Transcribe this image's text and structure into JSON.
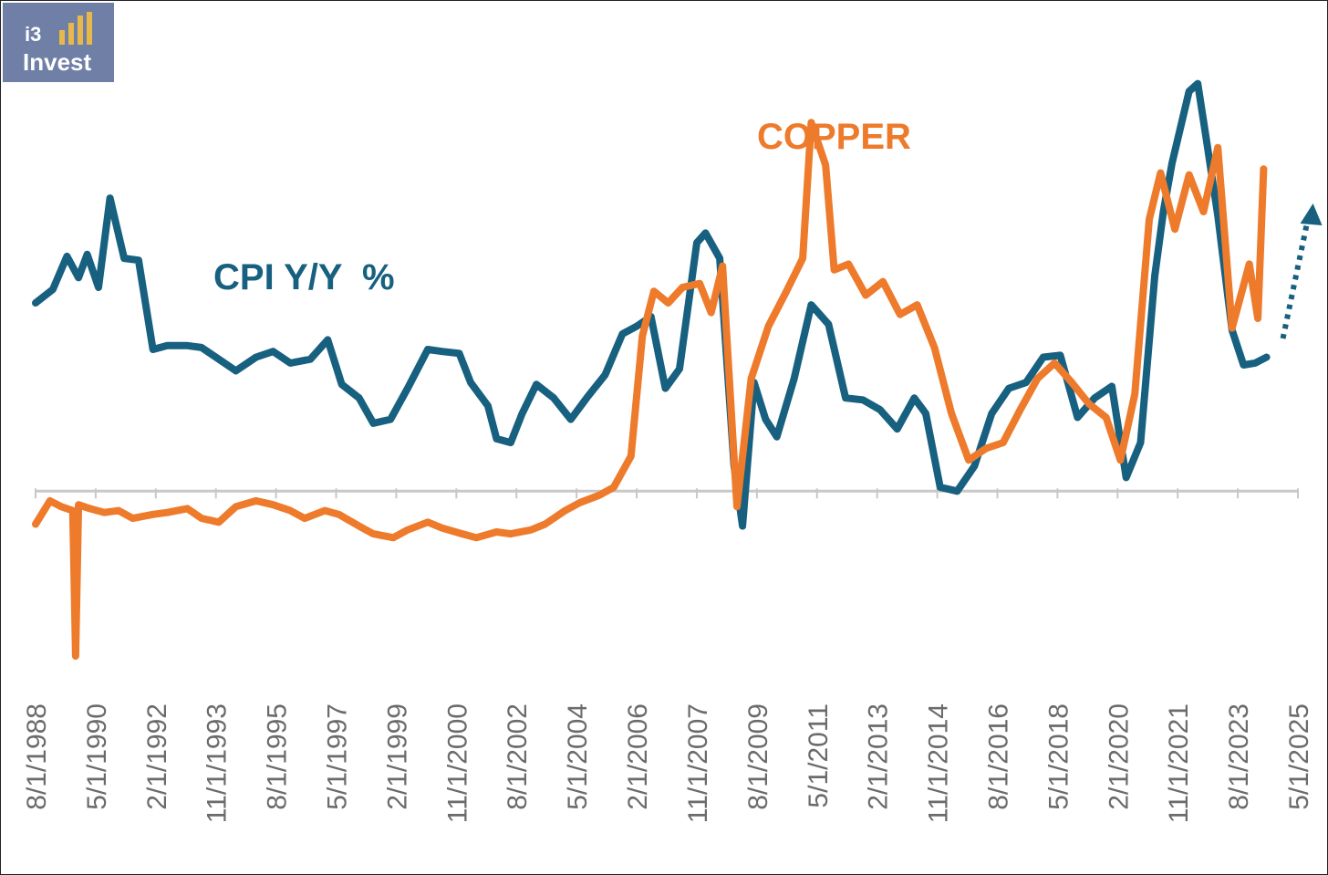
{
  "logo": {
    "line1": "i3",
    "line2": "Invest"
  },
  "colors": {
    "cpi": "#17607f",
    "copper": "#ee7a2b",
    "axis": "#c8c8c8",
    "logo_bg": "#6f7fa6",
    "logo_bars": "#e8b84a"
  },
  "chart_data": {
    "type": "line",
    "title": "",
    "xlabel": "",
    "ylabel": "",
    "grid": false,
    "y_axis_shown": false,
    "annotation": "dotted arrow pointing up-right after last CPI point",
    "x_tick_labels": [
      "8/1/1988",
      "5/1/1990",
      "2/1/1992",
      "11/1/1993",
      "8/1/1995",
      "5/1/1997",
      "2/1/1999",
      "11/1/2000",
      "8/1/2002",
      "5/1/2004",
      "2/1/2006",
      "11/1/2007",
      "8/1/2009",
      "5/1/2011",
      "2/1/2013",
      "11/1/2014",
      "8/1/2016",
      "5/1/2018",
      "2/1/2020",
      "11/1/2021",
      "8/1/2023",
      "5/1/2025"
    ],
    "xlim": [
      "1988-08-01",
      "2025-05-01"
    ],
    "ylim": [
      -100,
      215
    ],
    "series": [
      {
        "name": "CPI Y/Y  %",
        "dates": [
          "1988-08-01",
          "1989-02-01",
          "1989-07-01",
          "1989-11-01",
          "1990-02-01",
          "1990-06-01",
          "1990-10-01",
          "1991-03-01",
          "1991-08-01",
          "1992-01-01",
          "1992-06-01",
          "1993-01-01",
          "1993-06-01",
          "1993-12-01",
          "1994-06-01",
          "1995-01-01",
          "1995-07-01",
          "1996-01-01",
          "1996-08-01",
          "1997-02-01",
          "1997-07-01",
          "1998-01-01",
          "1998-06-01",
          "1998-12-01",
          "1999-06-01",
          "2000-01-01",
          "2000-06-01",
          "2000-12-01",
          "2001-04-01",
          "2001-10-01",
          "2002-01-01",
          "2002-06-01",
          "2002-10-01",
          "2003-03-01",
          "2003-09-01",
          "2004-03-01",
          "2004-09-01",
          "2005-03-01",
          "2005-09-01",
          "2006-02-01",
          "2006-07-01",
          "2006-12-01",
          "2007-05-01",
          "2007-11-01",
          "2008-02-01",
          "2008-07-01",
          "2008-12-01",
          "2009-03-01",
          "2009-07-01",
          "2009-11-01",
          "2010-03-01",
          "2010-09-01",
          "2011-03-01",
          "2011-09-01",
          "2012-03-01",
          "2012-09-01",
          "2013-03-01",
          "2013-09-01",
          "2014-03-01",
          "2014-07-01",
          "2014-12-01",
          "2015-06-01",
          "2015-12-01",
          "2016-06-01",
          "2016-12-01",
          "2017-06-01",
          "2017-12-01",
          "2018-06-01",
          "2018-12-01",
          "2019-06-01",
          "2019-12-01",
          "2020-05-01",
          "2020-10-01",
          "2021-03-01",
          "2021-06-01",
          "2021-09-01",
          "2022-03-01",
          "2022-06-01",
          "2022-09-01",
          "2023-01-01",
          "2023-06-01",
          "2023-10-01",
          "2024-02-01",
          "2024-06-01"
        ],
        "values": [
          97,
          104,
          121,
          110,
          122,
          105,
          151,
          120,
          119,
          73,
          75,
          75,
          74,
          68,
          62,
          69,
          72,
          66,
          68,
          78,
          55,
          48,
          35,
          37,
          53,
          73,
          72,
          71,
          56,
          44,
          27,
          25,
          40,
          55,
          48,
          37,
          49,
          60,
          81,
          85,
          90,
          53,
          63,
          128,
          133,
          120,
          13,
          -18,
          56,
          37,
          28,
          58,
          96,
          86,
          48,
          47,
          42,
          32,
          48,
          40,
          2,
          0,
          13,
          40,
          53,
          56,
          69,
          70,
          38,
          48,
          54,
          7,
          25,
          111,
          144,
          169,
          206,
          210,
          181,
          142,
          83,
          65,
          66,
          69
        ]
      },
      {
        "name": "COPPER",
        "dates": [
          "1988-08-01",
          "1989-01-01",
          "1989-05-01",
          "1989-09-01",
          "1989-10-01",
          "1989-11-01",
          "1990-03-01",
          "1990-08-01",
          "1991-01-01",
          "1991-06-01",
          "1992-01-01",
          "1992-06-01",
          "1993-01-01",
          "1993-06-01",
          "1993-12-01",
          "1994-06-01",
          "1995-01-01",
          "1995-07-01",
          "1996-01-01",
          "1996-06-01",
          "1997-01-01",
          "1997-06-01",
          "1998-01-01",
          "1998-06-01",
          "1999-01-01",
          "1999-06-01",
          "2000-01-01",
          "2000-06-01",
          "2001-01-01",
          "2001-06-01",
          "2002-01-01",
          "2002-06-01",
          "2003-01-01",
          "2003-06-01",
          "2004-01-01",
          "2004-06-01",
          "2005-01-01",
          "2005-06-01",
          "2005-12-01",
          "2006-04-01",
          "2006-08-01",
          "2007-01-01",
          "2007-06-01",
          "2007-12-01",
          "2008-04-01",
          "2008-08-01",
          "2009-01-01",
          "2009-06-01",
          "2009-12-01",
          "2010-06-01",
          "2010-12-01",
          "2011-03-01",
          "2011-08-01",
          "2011-11-01",
          "2012-04-01",
          "2012-10-01",
          "2013-04-01",
          "2013-10-01",
          "2014-04-01",
          "2014-10-01",
          "2015-04-01",
          "2015-10-01",
          "2016-04-01",
          "2016-10-01",
          "2017-04-01",
          "2017-10-01",
          "2018-04-01",
          "2018-10-01",
          "2019-04-01",
          "2019-10-01",
          "2020-03-01",
          "2020-08-01",
          "2021-01-01",
          "2021-05-01",
          "2021-10-01",
          "2022-03-01",
          "2022-08-01",
          "2023-01-01",
          "2023-06-01",
          "2023-12-01",
          "2024-03-01",
          "2024-05-01"
        ],
        "values": [
          -17,
          -5,
          -8,
          -10,
          -85,
          -7,
          -9,
          -11,
          -10,
          -14,
          -12,
          -11,
          -9,
          -14,
          -16,
          -8,
          -5,
          -7,
          -10,
          -14,
          -10,
          -12,
          -18,
          -22,
          -24,
          -20,
          -16,
          -19,
          -22,
          -24,
          -21,
          -22,
          -20,
          -17,
          -10,
          -6,
          -2,
          2,
          18,
          80,
          103,
          97,
          105,
          107,
          92,
          116,
          -8,
          58,
          85,
          102,
          120,
          190,
          168,
          114,
          117,
          101,
          108,
          91,
          96,
          74,
          40,
          16,
          22,
          25,
          42,
          58,
          66,
          56,
          45,
          38,
          16,
          50,
          140,
          164,
          135,
          163,
          144,
          177,
          84,
          117,
          89,
          166
        ]
      }
    ]
  }
}
